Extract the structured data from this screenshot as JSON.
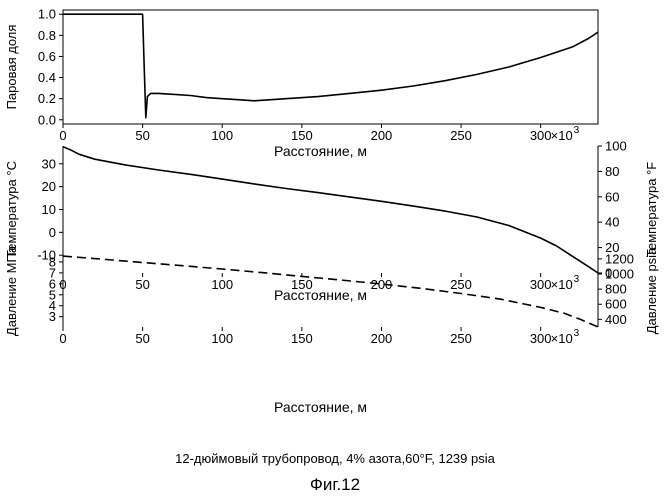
{
  "caption": "12-дюймовый трубопровод, 4% азота,60°F, 1239 psia",
  "figure_label": "Фиг.12",
  "chart_data": [
    {
      "type": "line",
      "ylabel": "Паровая доля",
      "xlabel": "Расстояние, м",
      "x_multiplier_label": "×10",
      "x_multiplier_exp": "3",
      "xlim": [
        0,
        336
      ],
      "ylim": [
        -0.04,
        1.04
      ],
      "xticks": [
        0,
        50,
        100,
        150,
        200,
        250,
        300
      ],
      "yticks": [
        0.0,
        0.2,
        0.4,
        0.6,
        0.8,
        1.0
      ],
      "ytick_labels": [
        "0.0",
        "0.2",
        "0.4",
        "0.6",
        "0.8",
        "1.0"
      ],
      "line_style": "solid",
      "series": [
        {
          "x": [
            0,
            50,
            51,
            52,
            53,
            55,
            60,
            70,
            80,
            90,
            100,
            110,
            120,
            140,
            160,
            180,
            200,
            220,
            240,
            260,
            280,
            300,
            320,
            330,
            336
          ],
          "y": [
            1.0,
            1.0,
            0.5,
            0.02,
            0.22,
            0.25,
            0.25,
            0.24,
            0.23,
            0.21,
            0.2,
            0.19,
            0.18,
            0.2,
            0.22,
            0.25,
            0.28,
            0.32,
            0.37,
            0.43,
            0.5,
            0.59,
            0.69,
            0.77,
            0.83
          ]
        }
      ]
    },
    {
      "type": "line",
      "ylabel": "Температура °C",
      "ylabel_right": "Температура °F",
      "xlabel": "Расстояние, м",
      "x_multiplier_label": "×10",
      "x_multiplier_exp": "3",
      "xlim": [
        0,
        336
      ],
      "ylim": [
        -17.8,
        37.8
      ],
      "xticks": [
        0,
        50,
        100,
        150,
        200,
        250,
        300
      ],
      "yticks": [
        -10,
        0,
        10,
        20,
        30
      ],
      "ytick_labels": [
        "-10",
        "0",
        "10",
        "20",
        "30"
      ],
      "yticks_right": [
        0,
        20,
        40,
        60,
        80,
        100
      ],
      "line_style": "solid",
      "series": [
        {
          "x": [
            0,
            5,
            10,
            20,
            40,
            60,
            80,
            100,
            120,
            140,
            160,
            180,
            200,
            220,
            240,
            260,
            280,
            300,
            310,
            320,
            330,
            336
          ],
          "y": [
            37.5,
            36.0,
            34.2,
            32.0,
            29.4,
            27.3,
            25.4,
            23.3,
            21.2,
            19.2,
            17.4,
            15.5,
            13.6,
            11.5,
            9.3,
            6.7,
            3.0,
            -2.5,
            -6.0,
            -10.5,
            -15.0,
            -17.8
          ]
        }
      ]
    },
    {
      "type": "line",
      "ylabel": "Давление МПа",
      "ylabel_right": "Давление psia",
      "xlabel": "Расстояние, м",
      "x_multiplier_label": "×10",
      "x_multiplier_exp": "3",
      "xlim": [
        0,
        336
      ],
      "ylim": [
        2.06,
        8.63
      ],
      "xticks": [
        0,
        50,
        100,
        150,
        200,
        250,
        300
      ],
      "yticks": [
        3,
        4,
        5,
        6,
        7,
        8
      ],
      "ytick_labels": [
        "3",
        "4",
        "5",
        "6",
        "7",
        "8"
      ],
      "yticks_right": [
        400,
        600,
        800,
        1000,
        1200
      ],
      "line_style": "dashed",
      "series": [
        {
          "x": [
            0,
            25,
            50,
            75,
            100,
            125,
            150,
            175,
            200,
            225,
            250,
            275,
            300,
            315,
            325,
            336
          ],
          "y": [
            8.53,
            8.25,
            7.95,
            7.65,
            7.35,
            7.02,
            6.68,
            6.34,
            5.98,
            5.58,
            5.12,
            4.6,
            3.85,
            3.3,
            2.75,
            2.06
          ]
        }
      ]
    }
  ]
}
